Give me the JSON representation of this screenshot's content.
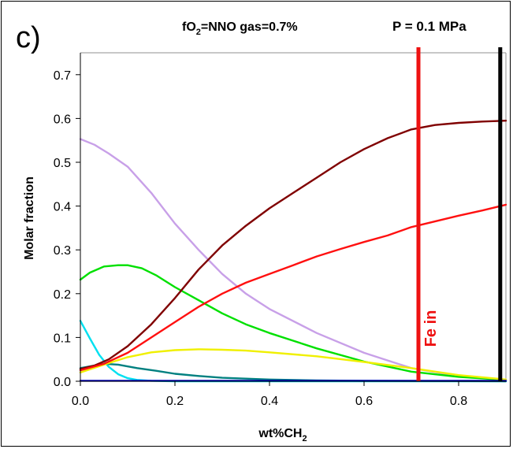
{
  "chart_data": {
    "type": "line",
    "panel_label": "c)",
    "title_left": {
      "base": "fO",
      "sub": "2",
      "rest": "=NNO gas=0.7%"
    },
    "title_right": "P = 0.1 MPa",
    "xlabel": {
      "base": "wt%CH",
      "sub": "2"
    },
    "ylabel": "Molar fraction",
    "xlim": [
      0,
      0.9
    ],
    "ylim": [
      0,
      0.75
    ],
    "x_ticks": [
      0.0,
      0.2,
      0.4,
      0.6,
      0.8
    ],
    "x_tick_labels": [
      "0.0",
      "0.2",
      "0.4",
      "0.6",
      "0.8"
    ],
    "y_ticks": [
      0.0,
      0.1,
      0.2,
      0.3,
      0.4,
      0.5,
      0.6,
      0.7
    ],
    "y_tick_labels": [
      "0.0",
      "0.1",
      "0.2",
      "0.3",
      "0.4",
      "0.5",
      "0.6",
      "0.7"
    ],
    "grid": false,
    "legend": "none",
    "series": [
      {
        "color": "#c8a0e8",
        "x": [
          0,
          0.03,
          0.06,
          0.1,
          0.15,
          0.2,
          0.25,
          0.3,
          0.35,
          0.4,
          0.5,
          0.6,
          0.7,
          0.8,
          0.9
        ],
        "y": [
          0.553,
          0.54,
          0.52,
          0.49,
          0.43,
          0.36,
          0.3,
          0.245,
          0.2,
          0.165,
          0.11,
          0.065,
          0.03,
          0.012,
          0.003
        ]
      },
      {
        "color": "#00e000",
        "x": [
          0,
          0.02,
          0.05,
          0.08,
          0.1,
          0.13,
          0.16,
          0.2,
          0.25,
          0.3,
          0.35,
          0.4,
          0.5,
          0.6,
          0.7,
          0.8,
          0.9
        ],
        "y": [
          0.232,
          0.248,
          0.262,
          0.265,
          0.265,
          0.258,
          0.242,
          0.215,
          0.185,
          0.155,
          0.13,
          0.11,
          0.075,
          0.045,
          0.022,
          0.01,
          0.003
        ]
      },
      {
        "color": "#00e0f0",
        "x": [
          0,
          0.02,
          0.04,
          0.06,
          0.08,
          0.1,
          0.12,
          0.15,
          0.2,
          0.3,
          0.9
        ],
        "y": [
          0.138,
          0.098,
          0.06,
          0.033,
          0.016,
          0.007,
          0.003,
          0.001,
          0.0,
          0.0,
          0.0
        ]
      },
      {
        "color": "#008080",
        "x": [
          0,
          0.05,
          0.08,
          0.12,
          0.16,
          0.2,
          0.25,
          0.3,
          0.35,
          0.4,
          0.5,
          0.6,
          0.9
        ],
        "y": [
          0.03,
          0.04,
          0.038,
          0.03,
          0.024,
          0.017,
          0.012,
          0.008,
          0.006,
          0.004,
          0.002,
          0.001,
          0.0
        ]
      },
      {
        "color": "#f0f000",
        "x": [
          0,
          0.05,
          0.1,
          0.15,
          0.2,
          0.25,
          0.3,
          0.35,
          0.4,
          0.5,
          0.6,
          0.7,
          0.8,
          0.9
        ],
        "y": [
          0.02,
          0.038,
          0.055,
          0.066,
          0.071,
          0.073,
          0.072,
          0.07,
          0.066,
          0.057,
          0.044,
          0.03,
          0.014,
          0.004
        ]
      },
      {
        "color": "#800000",
        "x": [
          0,
          0.03,
          0.06,
          0.1,
          0.15,
          0.2,
          0.25,
          0.3,
          0.35,
          0.4,
          0.45,
          0.5,
          0.55,
          0.6,
          0.65,
          0.7,
          0.75,
          0.8,
          0.85,
          0.9
        ],
        "y": [
          0.028,
          0.036,
          0.05,
          0.08,
          0.13,
          0.19,
          0.255,
          0.31,
          0.355,
          0.395,
          0.43,
          0.465,
          0.5,
          0.53,
          0.555,
          0.575,
          0.585,
          0.59,
          0.593,
          0.595
        ]
      },
      {
        "color": "#ff1010",
        "x": [
          0,
          0.05,
          0.1,
          0.15,
          0.2,
          0.25,
          0.3,
          0.35,
          0.4,
          0.45,
          0.5,
          0.55,
          0.6,
          0.65,
          0.7,
          0.75,
          0.8,
          0.85,
          0.9
        ],
        "y": [
          0.025,
          0.04,
          0.065,
          0.1,
          0.135,
          0.17,
          0.2,
          0.225,
          0.245,
          0.265,
          0.285,
          0.302,
          0.318,
          0.333,
          0.352,
          0.365,
          0.378,
          0.39,
          0.403
        ]
      },
      {
        "color": "#0000c0",
        "x": [
          0,
          0.9
        ],
        "y": [
          0.001,
          0.001
        ]
      }
    ],
    "vlines": [
      {
        "x": 0.715,
        "color": "#ee1111",
        "label": "Fe in"
      },
      {
        "x": 0.888,
        "color": "#000000",
        "label": ""
      }
    ]
  }
}
